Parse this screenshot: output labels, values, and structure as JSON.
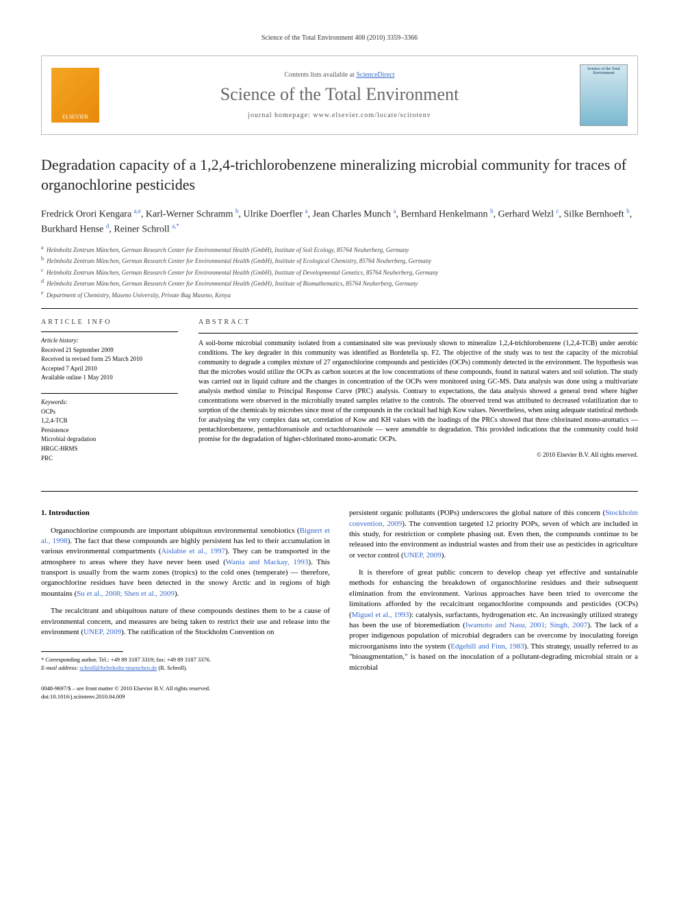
{
  "running_head": "Science of the Total Environment 408 (2010) 3359–3366",
  "banner": {
    "publisher_logo": "ELSEVIER",
    "contents_prefix": "Contents lists available at ",
    "contents_link": "ScienceDirect",
    "journal_name": "Science of the Total Environment",
    "homepage_label": "journal homepage: www.elsevier.com/locate/scitotenv",
    "cover_text": "Science of the Total Environment"
  },
  "title": "Degradation capacity of a 1,2,4-trichlorobenzene mineralizing microbial community for traces of organochlorine pesticides",
  "authors_html": "Fredrick Orori Kengara <sup>a,e</sup>, Karl-Werner Schramm <sup>b</sup>, Ulrike Doerfler <sup>a</sup>, Jean Charles Munch <sup>a</sup>, Bernhard Henkelmann <sup>b</sup>, Gerhard Welzl <sup>c</sup>, Silke Bernhoeft <sup>b</sup>, Burkhard Hense <sup>d</sup>, Reiner Schroll <sup>a,*</sup>",
  "affiliations": [
    {
      "key": "a",
      "text": "Helmholtz Zentrum München, German Research Center for Environmental Health (GmbH), Institute of Soil Ecology, 85764 Neuherberg, Germany"
    },
    {
      "key": "b",
      "text": "Helmholtz Zentrum München, German Research Center for Environmental Health (GmbH), Institute of Ecological Chemistry, 85764 Neuherberg, Germany"
    },
    {
      "key": "c",
      "text": "Helmholtz Zentrum München, German Research Center for Environmental Health (GmbH), Institute of Developmental Genetics, 85764 Neuherberg, Germany"
    },
    {
      "key": "d",
      "text": "Helmholtz Zentrum München, German Research Center for Environmental Health (GmbH), Institute of Biomathematics, 85764 Neuherberg, Germany"
    },
    {
      "key": "e",
      "text": "Department of Chemistry, Maseno University, Private Bag Maseno, Kenya"
    }
  ],
  "article_info": {
    "heading": "ARTICLE INFO",
    "history_heading": "Article history:",
    "history": [
      "Received 21 September 2009",
      "Received in revised form 25 March 2010",
      "Accepted 7 April 2010",
      "Available online 1 May 2010"
    ],
    "keywords_heading": "Keywords:",
    "keywords": [
      "OCPs",
      "1,2,4-TCB",
      "Persistence",
      "Microbial degradation",
      "HRGC-HRMS",
      "PRC"
    ]
  },
  "abstract": {
    "heading": "ABSTRACT",
    "text": "A soil-borne microbial community isolated from a contaminated site was previously shown to mineralize 1,2,4-trichlorobenzene (1,2,4-TCB) under aerobic conditions. The key degrader in this community was identified as Bordetella sp. F2. The objective of the study was to test the capacity of the microbial community to degrade a complex mixture of 27 organochlorine compounds and pesticides (OCPs) commonly detected in the environment. The hypothesis was that the microbes would utilize the OCPs as carbon sources at the low concentrations of these compounds, found in natural waters and soil solution. The study was carried out in liquid culture and the changes in concentration of the OCPs were monitored using GC-MS. Data analysis was done using a multivariate analysis method similar to Principal Response Curve (PRC) analysis. Contrary to expectations, the data analysis showed a general trend where higher concentrations were observed in the microbially treated samples relative to the controls. The observed trend was attributed to decreased volatilization due to sorption of the chemicals by microbes since most of the compounds in the cocktail had high Kow values. Nevertheless, when using adequate statistical methods for analysing the very complex data set, correlation of Kow and KH values with the loadings of the PRCs showed that three chlorinated mono-aromatics — pentachlorobenzene, pentachloroanisole and octachloroanisole — were amenable to degradation. This provided indications that the community could hold promise for the degradation of higher-chlorinated mono-aromatic OCPs.",
    "copyright": "© 2010 Elsevier B.V. All rights reserved."
  },
  "body": {
    "section_heading": "1. Introduction",
    "left_paras": [
      "Organochlorine compounds are important ubiquitous environmental xenobiotics (<span class=\"ref-link\">Bignert et al., 1998</span>). The fact that these compounds are highly persistent has led to their accumulation in various environmental compartments (<span class=\"ref-link\">Aislabie et al., 1997</span>). They can be transported in the atmosphere to areas where they have never been used (<span class=\"ref-link\">Wania and Mackay, 1993</span>). This transport is usually from the warm zones (tropics) to the cold ones (temperate) — therefore, organochlorine residues have been detected in the snowy Arctic and in regions of high mountains (<span class=\"ref-link\">Su et al., 2008; Shen et al., 2009</span>).",
      "The recalcitrant and ubiquitous nature of these compounds destines them to be a cause of environmental concern, and measures are being taken to restrict their use and release into the environment (<span class=\"ref-link\">UNEP, 2009</span>). The ratification of the Stockholm Convention on"
    ],
    "right_paras": [
      "persistent organic pollutants (POPs) underscores the global nature of this concern (<span class=\"ref-link\">Stockholm convention, 2009</span>). The convention targeted 12 priority POPs, seven of which are included in this study, for restriction or complete phasing out. Even then, the compounds continue to be released into the environment as industrial wastes and from their use as pesticides in agriculture or vector control (<span class=\"ref-link\">UNEP, 2009</span>).",
      "It is therefore of great public concern to develop cheap yet effective and sustainable methods for enhancing the breakdown of organochlorine residues and their subsequent elimination from the environment. Various approaches have been tried to overcome the limitations afforded by the recalcitrant organochlorine compounds and pesticides (OCPs) (<span class=\"ref-link\">Miguel et al., 1993</span>): catalysis, surfactants, hydrogenation etc. An increasingly utilized strategy has been the use of bioremediation (<span class=\"ref-link\">Iwamoto and Nasu, 2001; Singh, 2007</span>). The lack of a proper indigenous population of microbial degraders can be overcome by inoculating foreign microorganisms into the system (<span class=\"ref-link\">Edgehill and Finn, 1983</span>). This strategy, usually referred to as \"bioaugmentation,\" is based on the inoculation of a pollutant-degrading microbial strain or a microbial"
    ]
  },
  "footnote": {
    "corresponding": "* Corresponding author. Tel.: +49 89 3187 3319; fax: +49 89 3187 3376.",
    "email_label": "E-mail address:",
    "email": "schroll@helmholtz-muenchen.de",
    "email_suffix": "(R. Schroll)."
  },
  "footer": {
    "line1": "0048-9697/$ – see front matter © 2010 Elsevier B.V. All rights reserved.",
    "line2": "doi:10.1016/j.scitotenv.2010.04.009"
  }
}
